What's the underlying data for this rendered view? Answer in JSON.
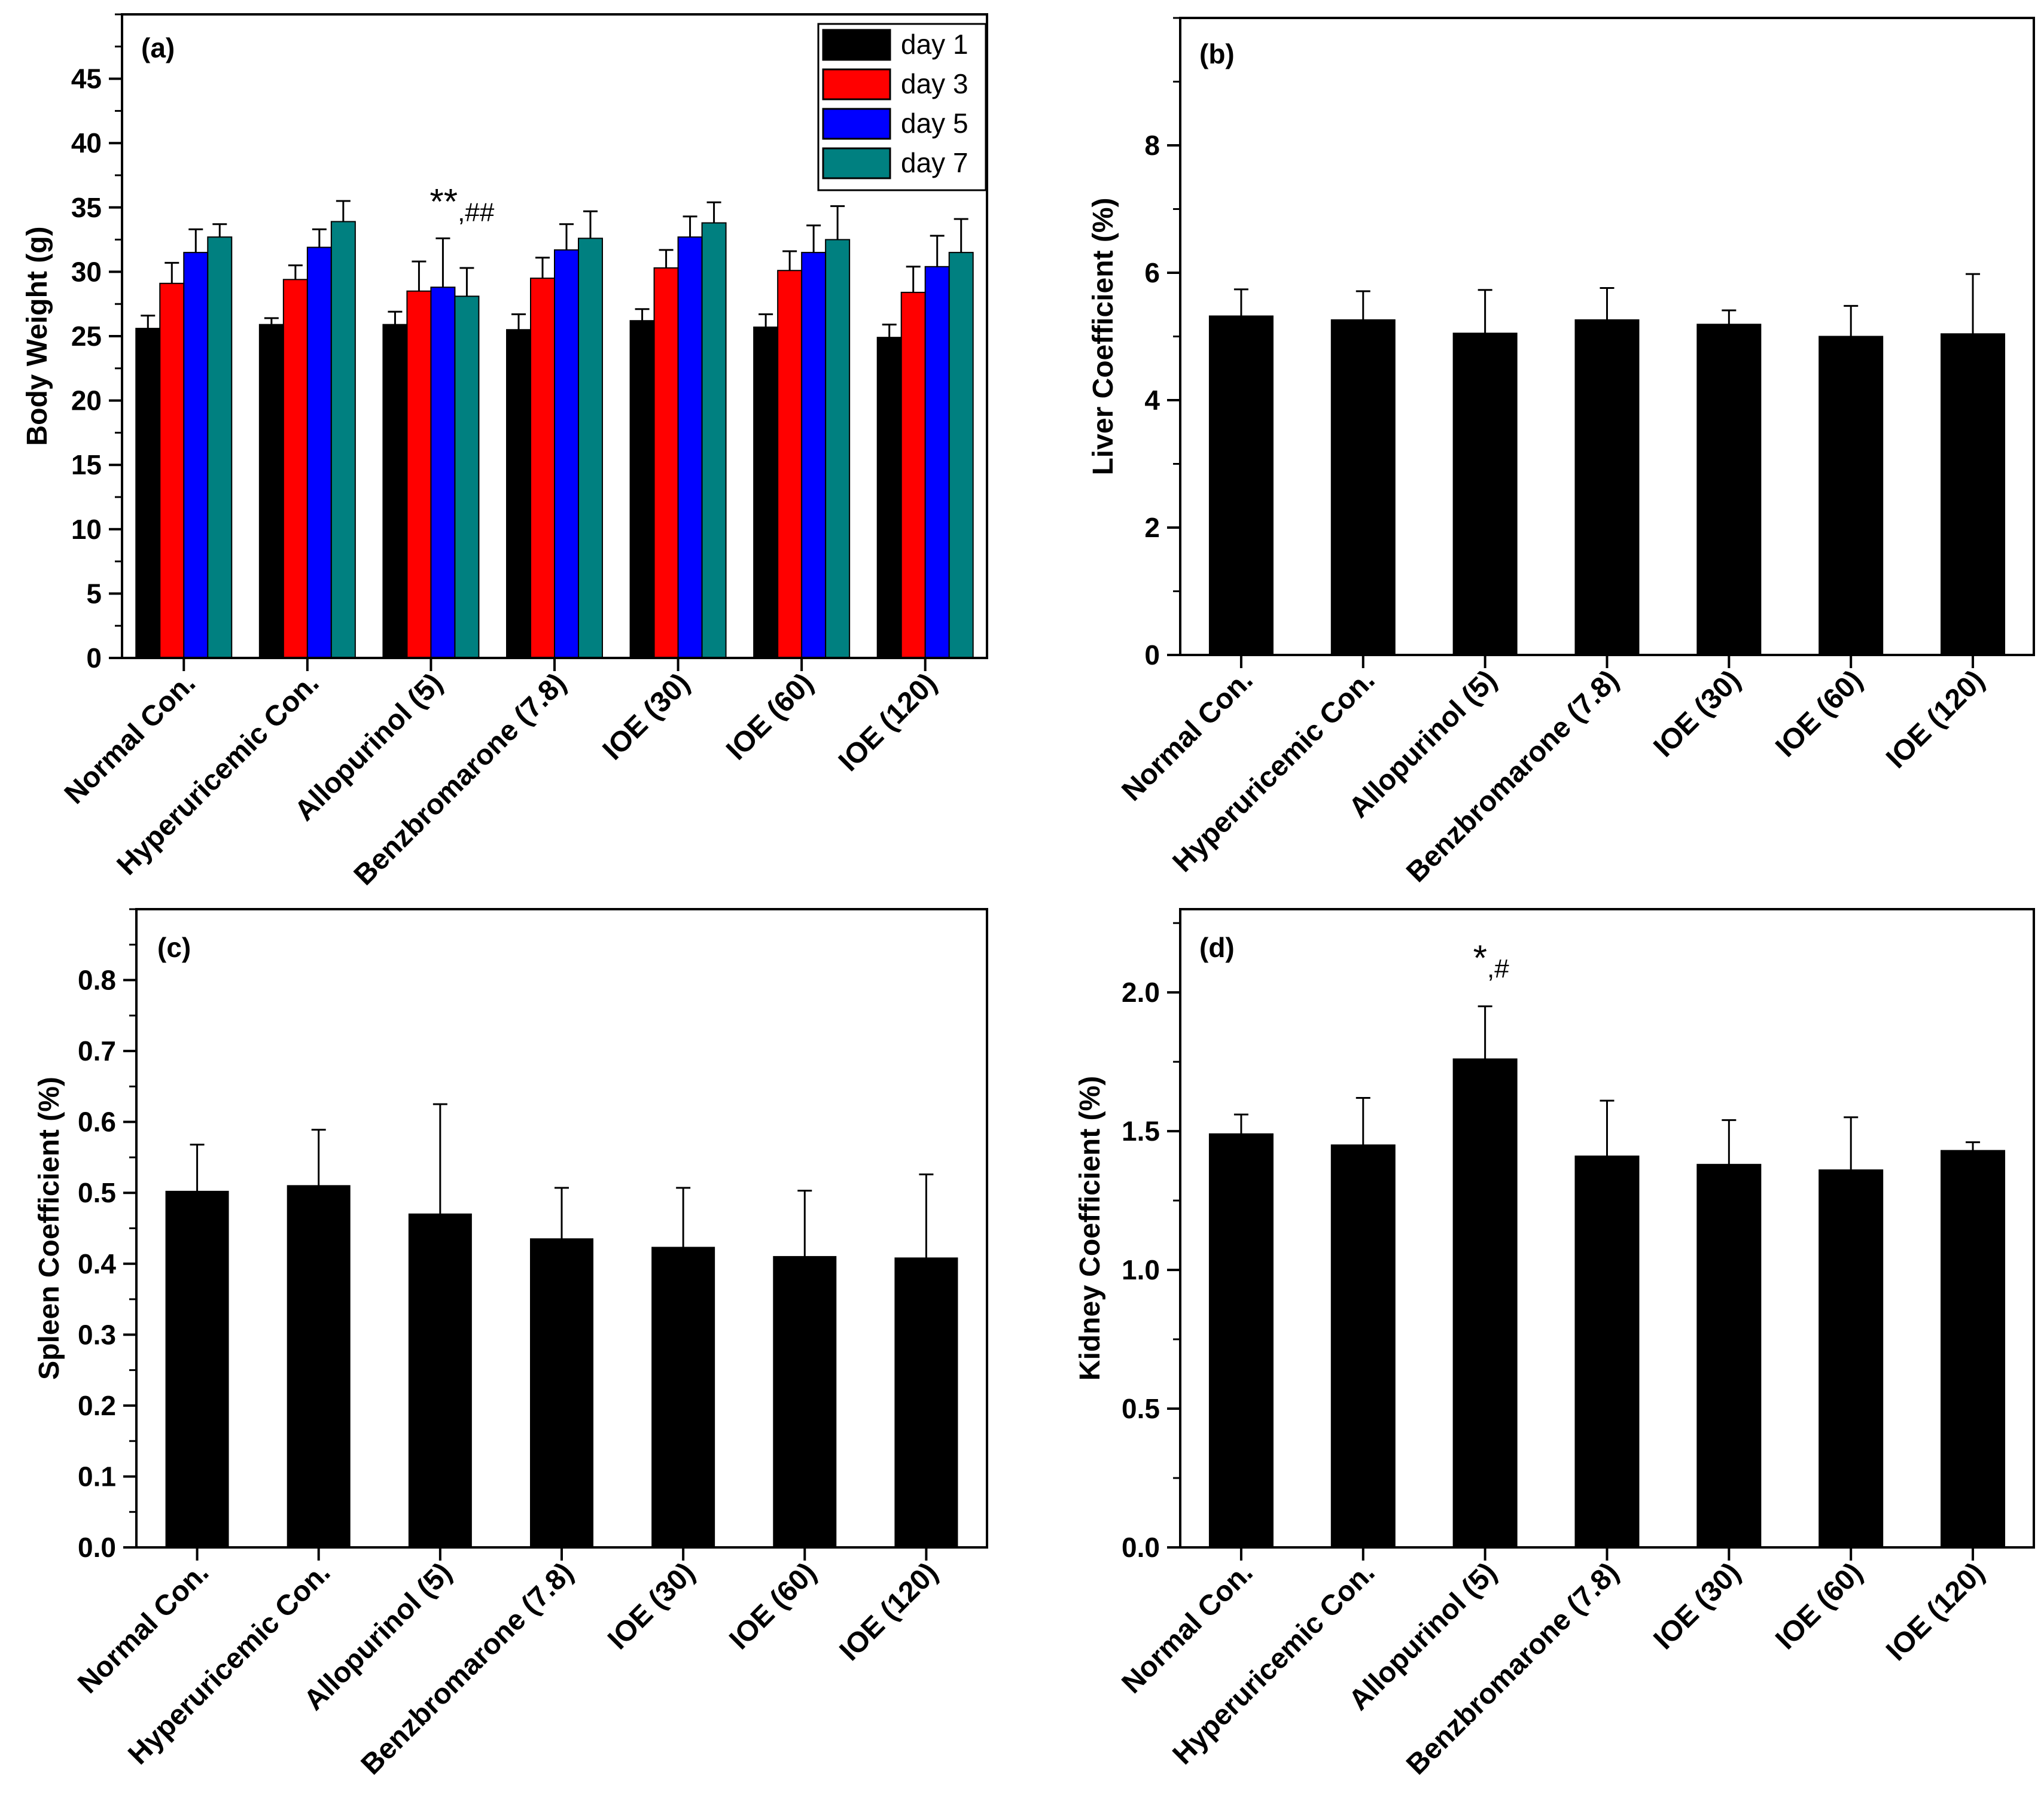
{
  "chart_data": [
    {
      "panel": "(a)",
      "type": "bar",
      "ylabel": "Body Weight (g)",
      "ylim": [
        0,
        50
      ],
      "yticks": [
        0,
        5,
        10,
        15,
        20,
        25,
        30,
        35,
        40,
        45
      ],
      "minor_step": 2.5,
      "categories": [
        "Normal Con.",
        "Hyperuricemic Con.",
        "Allopurinol (5)",
        "Benzbromarone (7.8)",
        "IOE (30)",
        "IOE (60)",
        "IOE (120)"
      ],
      "legend_position": "top-right",
      "series": [
        {
          "name": "day 1",
          "color": "#000000",
          "values": [
            25.6,
            25.9,
            25.9,
            25.5,
            26.2,
            25.7,
            24.9
          ],
          "errors": [
            1.0,
            0.5,
            1.0,
            1.2,
            0.9,
            1.0,
            1.0
          ]
        },
        {
          "name": "day 3",
          "color": "#ff0000",
          "values": [
            29.1,
            29.4,
            28.5,
            29.5,
            30.3,
            30.1,
            28.4
          ],
          "errors": [
            1.6,
            1.1,
            2.3,
            1.6,
            1.4,
            1.5,
            2.0
          ]
        },
        {
          "name": "day 5",
          "color": "#0000ff",
          "values": [
            31.5,
            31.9,
            28.8,
            31.7,
            32.7,
            31.5,
            30.4
          ],
          "errors": [
            1.8,
            1.4,
            3.8,
            2.0,
            1.6,
            2.1,
            2.4
          ]
        },
        {
          "name": "day 7",
          "color": "#008080",
          "values": [
            32.7,
            33.9,
            28.1,
            32.6,
            33.8,
            32.5,
            31.5
          ],
          "errors": [
            1.0,
            1.6,
            2.2,
            2.1,
            1.6,
            2.6,
            2.6
          ]
        }
      ],
      "annotations": [
        {
          "main": "**",
          "sup": ",##",
          "category_index": 2,
          "y": 34.5
        }
      ]
    },
    {
      "panel": "(b)",
      "type": "bar",
      "ylabel": "Liver Coefficient (%)",
      "ylim": [
        0,
        10
      ],
      "yticks": [
        0,
        2,
        4,
        6,
        8
      ],
      "minor_step": 1,
      "categories": [
        "Normal Con.",
        "Hyperuricemic Con.",
        "Allopurinol (5)",
        "Benzbromarone (7.8)",
        "IOE (30)",
        "IOE (60)",
        "IOE (120)"
      ],
      "series": [
        {
          "name": "",
          "color": "#000000",
          "values": [
            5.32,
            5.26,
            5.05,
            5.26,
            5.19,
            5.0,
            5.04
          ],
          "errors": [
            0.42,
            0.45,
            0.68,
            0.5,
            0.22,
            0.48,
            0.94
          ]
        }
      ],
      "annotations": []
    },
    {
      "panel": "(c)",
      "type": "bar",
      "ylabel": "Spleen Coefficient (%)",
      "ylim": [
        0,
        0.9
      ],
      "yticks": [
        0.0,
        0.1,
        0.2,
        0.3,
        0.4,
        0.5,
        0.6,
        0.7,
        0.8
      ],
      "minor_step": 0.05,
      "decimals": 1,
      "categories": [
        "Normal Con.",
        "Hyperuricemic Con.",
        "Allopurinol (5)",
        "Benzbromarone (7.8)",
        "IOE (30)",
        "IOE (60)",
        "IOE (120)"
      ],
      "series": [
        {
          "name": "",
          "color": "#000000",
          "values": [
            0.502,
            0.51,
            0.47,
            0.435,
            0.423,
            0.41,
            0.408
          ],
          "errors": [
            0.066,
            0.079,
            0.155,
            0.072,
            0.084,
            0.093,
            0.118
          ]
        }
      ],
      "annotations": []
    },
    {
      "panel": "(d)",
      "type": "bar",
      "ylabel": "Kidney Coefficient (%)",
      "ylim": [
        0,
        2.3
      ],
      "yticks": [
        0.0,
        0.5,
        1.0,
        1.5,
        2.0
      ],
      "minor_step": 0.25,
      "decimals": 1,
      "categories": [
        "Normal Con.",
        "Hyperuricemic Con.",
        "Allopurinol (5)",
        "Benzbromarone (7.8)",
        "IOE (30)",
        "IOE (60)",
        "IOE (120)"
      ],
      "series": [
        {
          "name": "",
          "color": "#000000",
          "values": [
            1.49,
            1.45,
            1.76,
            1.41,
            1.38,
            1.36,
            1.43
          ],
          "errors": [
            0.07,
            0.17,
            0.19,
            0.2,
            0.16,
            0.19,
            0.03
          ]
        }
      ],
      "annotations": [
        {
          "main": "*",
          "sup": ",#",
          "category_index": 2,
          "y": 2.08
        }
      ]
    }
  ]
}
